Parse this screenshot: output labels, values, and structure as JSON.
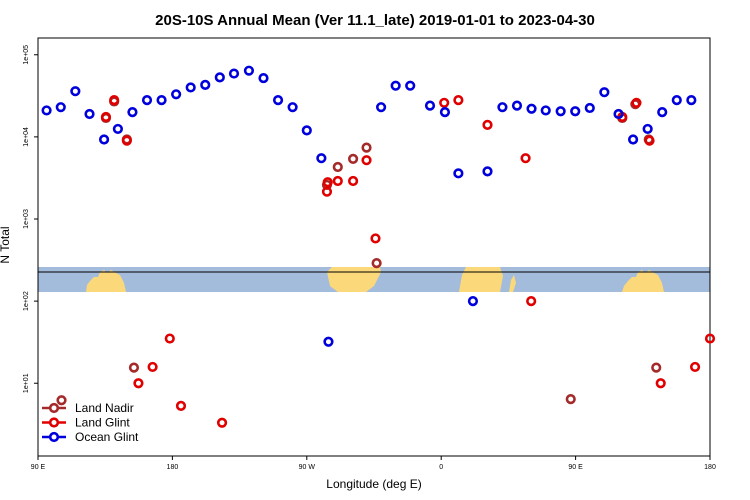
{
  "chart_data": {
    "type": "scatter",
    "title": "20S-10S Annual Mean (Ver 11.1_late)   2019-01-01 to 2023-04-30",
    "xlabel": "Longitude (deg E)",
    "ylabel": "N Total",
    "y_scale": "log",
    "xlim": [
      90,
      270
    ],
    "ylim": [
      1.3,
      160000
    ],
    "x_ticks": [
      {
        "value": 90,
        "label": "90 E"
      },
      {
        "value": 126,
        "label": "180"
      },
      {
        "value": 162,
        "label": "90 W"
      },
      {
        "value": 198,
        "label": "0"
      },
      {
        "value": 234,
        "label": "90 E"
      },
      {
        "value": 270,
        "label": "180"
      }
    ],
    "y_ticks": [
      {
        "value": 10,
        "label": "1e+01"
      },
      {
        "value": 100,
        "label": "1e+02"
      },
      {
        "value": 1000,
        "label": "1e+03"
      },
      {
        "value": 10000,
        "label": "1e+04"
      },
      {
        "value": 100000,
        "label": "1e+05"
      }
    ],
    "legend_position": "bottom-left",
    "grid": false,
    "series": [
      {
        "name": "Land Nadir",
        "color": "#a52a2a",
        "points": [
          [
            96.3,
            6.2
          ],
          [
            108.2,
            17000
          ],
          [
            110.4,
            27000
          ],
          [
            113.8,
            9300
          ],
          [
            115.7,
            15.5
          ],
          [
            167.4,
            2600
          ],
          [
            170.3,
            4300
          ],
          [
            174.4,
            5400
          ],
          [
            178.0,
            7400
          ],
          [
            180.7,
            290
          ],
          [
            232.7,
            6.4
          ],
          [
            246.5,
            17000
          ],
          [
            250.0,
            25000
          ],
          [
            253.6,
            9300
          ],
          [
            255.6,
            15.5
          ]
        ]
      },
      {
        "name": "Land Glint",
        "color": "#e00000",
        "points": [
          [
            108.2,
            17500
          ],
          [
            110.4,
            28000
          ],
          [
            113.8,
            9000
          ],
          [
            116.9,
            10
          ],
          [
            120.7,
            15.8
          ],
          [
            125.3,
            35
          ],
          [
            128.3,
            5.3
          ],
          [
            139.3,
            3.3
          ],
          [
            167.4,
            2150
          ],
          [
            167.6,
            2800
          ],
          [
            170.3,
            2900
          ],
          [
            174.4,
            2900
          ],
          [
            178.0,
            5200
          ],
          [
            180.4,
            580
          ],
          [
            198.8,
            26000
          ],
          [
            202.6,
            28000
          ],
          [
            210.4,
            14000
          ],
          [
            220.6,
            5500
          ],
          [
            222.1,
            100
          ],
          [
            246.5,
            17500
          ],
          [
            250.3,
            26000
          ],
          [
            253.8,
            9000
          ],
          [
            256.8,
            10
          ],
          [
            266.0,
            15.8
          ],
          [
            270.0,
            35
          ]
        ]
      },
      {
        "name": "Ocean Glint",
        "color": "#0000dd",
        "points": [
          [
            92.3,
            21000
          ],
          [
            96.1,
            23000
          ],
          [
            100.0,
            36000
          ],
          [
            103.8,
            19000
          ],
          [
            107.7,
            9300
          ],
          [
            111.4,
            12500
          ],
          [
            115.3,
            20000
          ],
          [
            119.2,
            28000
          ],
          [
            123.1,
            28000
          ],
          [
            127.0,
            33000
          ],
          [
            130.9,
            40000
          ],
          [
            134.8,
            43000
          ],
          [
            138.7,
            53000
          ],
          [
            142.5,
            59000
          ],
          [
            146.5,
            64000
          ],
          [
            150.4,
            52000
          ],
          [
            154.3,
            28000
          ],
          [
            158.2,
            23000
          ],
          [
            162.0,
            12000
          ],
          [
            165.9,
            5500
          ],
          [
            167.8,
            32
          ],
          [
            181.9,
            23000
          ],
          [
            185.8,
            42000
          ],
          [
            189.7,
            42000
          ],
          [
            195.0,
            24000
          ],
          [
            199.0,
            20000
          ],
          [
            202.6,
            3600
          ],
          [
            206.5,
            100
          ],
          [
            210.4,
            3800
          ],
          [
            214.4,
            23000
          ],
          [
            218.3,
            24000
          ],
          [
            222.2,
            22000
          ],
          [
            226.0,
            21000
          ],
          [
            230.0,
            20500
          ],
          [
            233.9,
            20500
          ],
          [
            237.8,
            22500
          ],
          [
            241.7,
            35000
          ],
          [
            245.5,
            19000
          ],
          [
            249.4,
            9300
          ],
          [
            253.3,
            12500
          ],
          [
            257.2,
            20000
          ],
          [
            261.1,
            28000
          ],
          [
            265.0,
            28000
          ]
        ]
      }
    ],
    "map_band": {
      "y_range": [
        170,
        380
      ],
      "colors": {
        "ocean": "#a3bcdc",
        "land": "#fbd97a",
        "line": "#000000"
      }
    }
  }
}
